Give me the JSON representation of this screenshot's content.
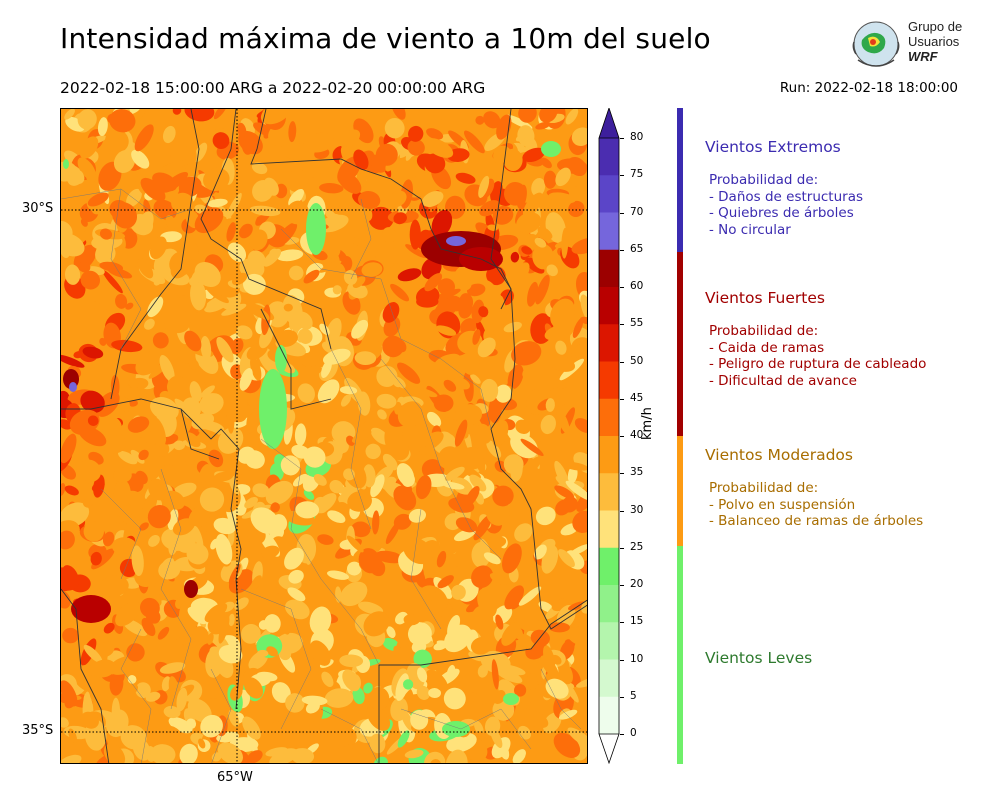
{
  "header": {
    "title": "Intensidad máxima de viento a 10m del suelo",
    "period": "2022-02-18 15:00:00 ARG  a  2022-02-20 00:00:00 ARG",
    "run": "Run: 2022-02-18 18:00:00"
  },
  "logo": {
    "line1": "Grupo de",
    "line2": "Usuarios",
    "line3": "WRF"
  },
  "map": {
    "lat_labels": [
      "30°S",
      "35°S"
    ],
    "lon_labels": [
      "65°W"
    ]
  },
  "colorbar": {
    "unit": "km/h",
    "ticks": [
      "80",
      "75",
      "70",
      "65",
      "60",
      "55",
      "50",
      "45",
      "40",
      "35",
      "30",
      "25",
      "20",
      "15",
      "10",
      "5",
      "0"
    ],
    "levels": [
      {
        "from": 75,
        "to": 80,
        "color": "#4b2db0"
      },
      {
        "from": 70,
        "to": 75,
        "color": "#5b45c8"
      },
      {
        "from": 65,
        "to": 70,
        "color": "#7566dc"
      },
      {
        "from": 60,
        "to": 65,
        "color": "#9c0000"
      },
      {
        "from": 55,
        "to": 60,
        "color": "#b90000"
      },
      {
        "from": 50,
        "to": 55,
        "color": "#dc1600"
      },
      {
        "from": 45,
        "to": 50,
        "color": "#f53a00"
      },
      {
        "from": 40,
        "to": 45,
        "color": "#fd6e0a"
      },
      {
        "from": 35,
        "to": 40,
        "color": "#fd9b14"
      },
      {
        "from": 30,
        "to": 35,
        "color": "#fdbc3c"
      },
      {
        "from": 25,
        "to": 30,
        "color": "#ffe27a"
      },
      {
        "from": 20,
        "to": 25,
        "color": "#6ff06a"
      },
      {
        "from": 15,
        "to": 20,
        "color": "#90f18a"
      },
      {
        "from": 10,
        "to": 15,
        "color": "#b4f5ad"
      },
      {
        "from": 5,
        "to": 10,
        "color": "#d4f9cf"
      },
      {
        "from": 0,
        "to": 5,
        "color": "#eefdec"
      }
    ]
  },
  "categories": [
    {
      "title": "Vientos Extremos",
      "color": "#3b2bb0",
      "lines": [
        "Probabilidad de:",
        "- Daños de estructuras",
        "- Quiebres de árboles",
        "- No circular"
      ]
    },
    {
      "title": "Vientos Fuertes",
      "color": "#a10000",
      "lines": [
        "Probabilidad de:",
        "- Caida de ramas",
        "- Peligro de ruptura de cableado",
        "- Dificultad de avance"
      ]
    },
    {
      "title": "Vientos Moderados",
      "color": "#a86d00",
      "lines": [
        "Probabilidad de:",
        "- Polvo en suspensión",
        "- Balanceo de ramas de árboles"
      ]
    },
    {
      "title": "Vientos Leves",
      "color": "#2e7a2e",
      "lines": []
    }
  ],
  "strip_colors": [
    "#3b2bb0",
    "#a10000",
    "#fd9b14",
    "#6ff06a"
  ]
}
